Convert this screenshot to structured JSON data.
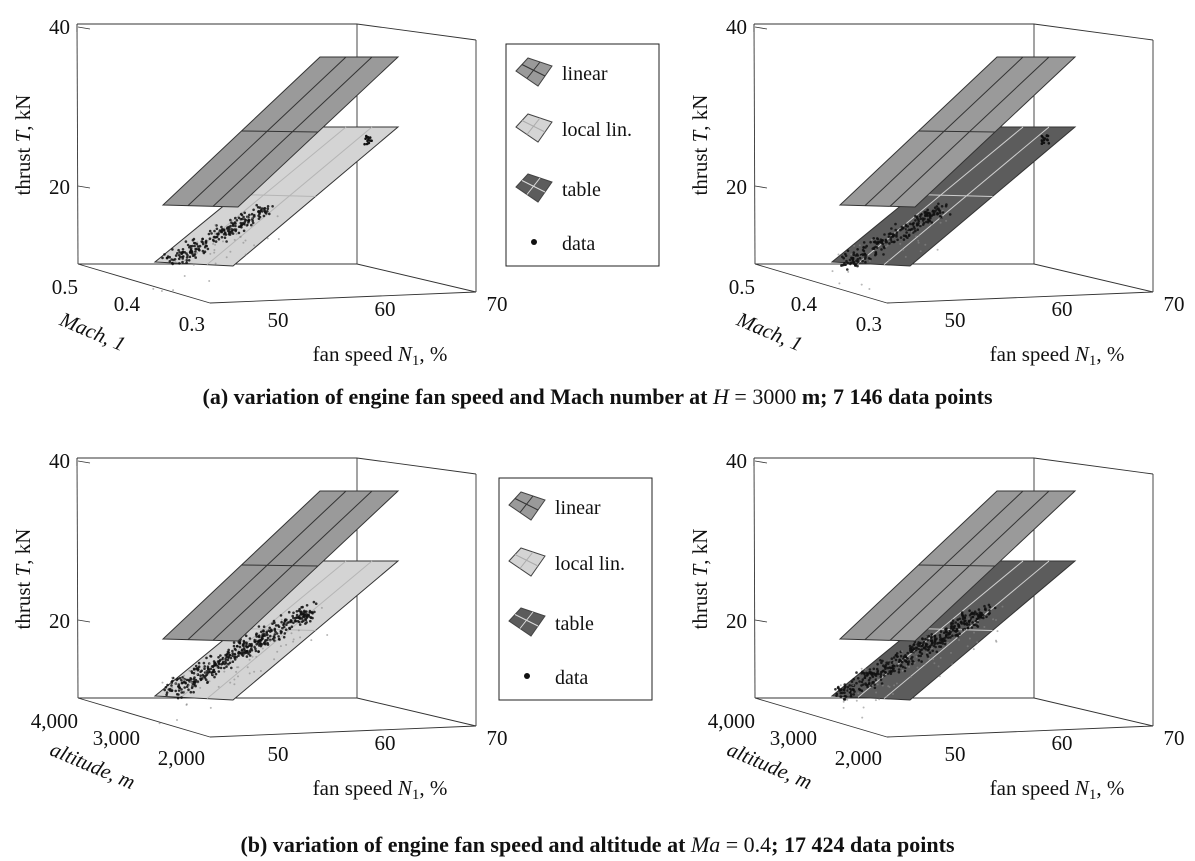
{
  "legend": {
    "entries": [
      {
        "key": "linear",
        "label": "linear"
      },
      {
        "key": "local",
        "label": "local lin."
      },
      {
        "key": "table",
        "label": "table"
      },
      {
        "key": "data",
        "label": "data"
      }
    ]
  },
  "colors": {
    "linear_fill": "#9a9a9a",
    "local_fill": "#d4d4d4",
    "table_fill": "#5c5c5c",
    "data_point": "#111111",
    "frame": "#333333"
  },
  "captions": {
    "a": {
      "prefix": "(a) variation of engine fan speed and Mach number at ",
      "var": "H",
      "eq": " = ",
      "value": "3000",
      "unit": " m",
      "suffix": "; 7 146 data points"
    },
    "b": {
      "prefix": "(b) variation of engine fan speed and altitude at ",
      "var": "Ma",
      "eq": " = ",
      "value": "0.4",
      "suffix": "; 17 424 data points"
    }
  },
  "chart_data": [
    {
      "id": "a-left",
      "type": "surface3d",
      "xlabel": "fan speed N1, %",
      "ylabel": "Mach, 1",
      "zlabel": "thrust T, kN",
      "xticks": [
        "50",
        "60",
        "70"
      ],
      "yticks": [
        "0.5",
        "0.4",
        "0.3"
      ],
      "zticks": [
        "20",
        "40"
      ],
      "xlim": [
        45,
        70
      ],
      "ylim": [
        0.3,
        0.5
      ],
      "zlim": [
        10,
        40
      ],
      "surfaces": [
        "linear",
        "local lin."
      ],
      "linear_plane": {
        "T_at_N1_45": 20.5,
        "T_at_N1_70": 40
      },
      "local_plane": {
        "T_at_N1_45": 11,
        "T_at_N1_70": 31
      },
      "data_points": 7146
    },
    {
      "id": "a-right",
      "type": "surface3d",
      "xlabel": "fan speed N1, %",
      "ylabel": "Mach, 1",
      "zlabel": "thrust T, kN",
      "xticks": [
        "50",
        "60",
        "70"
      ],
      "yticks": [
        "0.5",
        "0.4",
        "0.3"
      ],
      "zticks": [
        "20",
        "40"
      ],
      "xlim": [
        45,
        70
      ],
      "ylim": [
        0.3,
        0.5
      ],
      "zlim": [
        10,
        40
      ],
      "surfaces": [
        "linear",
        "table"
      ],
      "data_points": 7146
    },
    {
      "id": "b-left",
      "type": "surface3d",
      "xlabel": "fan speed N1, %",
      "ylabel": "altitude, m",
      "zlabel": "thrust T, kN",
      "xticks": [
        "50",
        "60",
        "70"
      ],
      "yticks": [
        "4,000",
        "3,000",
        "2,000"
      ],
      "zticks": [
        "20",
        "40"
      ],
      "xlim": [
        45,
        70
      ],
      "ylim": [
        2000,
        4000
      ],
      "zlim": [
        10,
        40
      ],
      "surfaces": [
        "linear",
        "local lin."
      ],
      "data_points": 17424
    },
    {
      "id": "b-right",
      "type": "surface3d",
      "xlabel": "fan speed N1, %",
      "ylabel": "altitude, m",
      "zlabel": "thrust T, kN",
      "xticks": [
        "50",
        "60",
        "70"
      ],
      "yticks": [
        "4,000",
        "3,000",
        "2,000"
      ],
      "zticks": [
        "20",
        "40"
      ],
      "xlim": [
        45,
        70
      ],
      "ylim": [
        2000,
        4000
      ],
      "zlim": [
        10,
        40
      ],
      "surfaces": [
        "linear",
        "table"
      ],
      "data_points": 17424
    }
  ]
}
